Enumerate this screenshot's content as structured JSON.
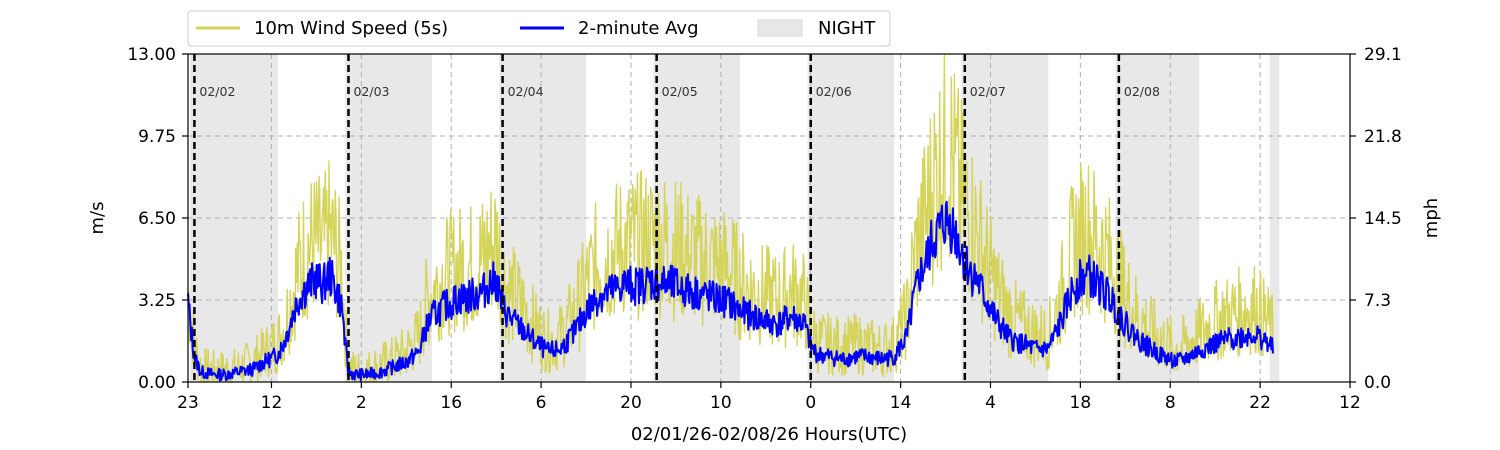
{
  "chart_data": {
    "type": "line",
    "xlabel": "02/01/26-02/08/26  Hours(UTC)",
    "ylabel_left": "m/s",
    "ylabel_right": "mph",
    "ylim": [
      0,
      13
    ],
    "x_start_hour": 23,
    "x_range_hours": [
      0,
      181
    ],
    "yticks_left": [
      "0.00",
      "3.25",
      "6.50",
      "9.75",
      "13.00"
    ],
    "yticks_left_values": [
      0,
      3.25,
      6.5,
      9.75,
      13
    ],
    "yticks_right": [
      "0.0",
      "7.3",
      "14.5",
      "21.8",
      "29.1"
    ],
    "xticks": [
      {
        "hours": 0,
        "label": "23"
      },
      {
        "hours": 13,
        "label": "12"
      },
      {
        "hours": 27,
        "label": "2"
      },
      {
        "hours": 41,
        "label": "16"
      },
      {
        "hours": 55,
        "label": "6"
      },
      {
        "hours": 69,
        "label": "20"
      },
      {
        "hours": 83,
        "label": "10"
      },
      {
        "hours": 97,
        "label": "0"
      },
      {
        "hours": 111,
        "label": "14"
      },
      {
        "hours": 125,
        "label": "4"
      },
      {
        "hours": 139,
        "label": "18"
      },
      {
        "hours": 153,
        "label": "8"
      },
      {
        "hours": 167,
        "label": "22"
      },
      {
        "hours": 181,
        "label": "12"
      }
    ],
    "day_markers": [
      {
        "hours": 1,
        "label": "02/02"
      },
      {
        "hours": 25,
        "label": "02/03"
      },
      {
        "hours": 49,
        "label": "02/04"
      },
      {
        "hours": 73,
        "label": "02/05"
      },
      {
        "hours": 97,
        "label": "02/06"
      },
      {
        "hours": 121,
        "label": "02/07"
      },
      {
        "hours": 145,
        "label": "02/08"
      }
    ],
    "night_periods": [
      [
        0.3,
        14
      ],
      [
        24.5,
        38
      ],
      [
        48.5,
        62
      ],
      [
        72.5,
        86
      ],
      [
        96.5,
        110
      ],
      [
        120.5,
        134
      ],
      [
        144.5,
        157.5
      ],
      [
        168.5,
        170
      ]
    ],
    "legend": {
      "placement": "top-center",
      "entries": [
        "10m Wind Speed (5s)",
        "2-minute Avg",
        "NIGHT"
      ]
    },
    "colors": {
      "gust": "#d4d45a",
      "avg": "#0000ff",
      "night": "#e8e8e8"
    },
    "grid": true,
    "series": [
      {
        "name": "10m Wind Speed (5s)",
        "x": [
          0,
          0.5,
          1,
          2,
          4,
          6,
          8,
          10,
          12,
          14,
          15,
          16,
          17,
          18,
          19,
          20,
          21,
          22,
          23,
          24,
          24.5,
          25,
          26,
          28,
          30,
          32,
          34,
          36,
          37,
          38,
          40,
          42,
          44,
          46,
          47,
          48,
          49,
          50,
          52,
          54,
          56,
          58,
          60,
          62,
          64,
          66,
          68,
          70,
          72,
          74,
          76,
          78,
          80,
          82,
          84,
          86,
          88,
          90,
          92,
          94,
          96,
          97,
          98,
          100,
          102,
          104,
          106,
          108,
          110,
          112,
          113,
          114,
          115,
          116,
          117,
          118,
          119,
          120,
          121,
          122,
          123,
          124,
          126,
          128,
          130,
          132,
          134,
          136,
          138,
          140,
          142,
          144,
          146,
          148,
          150,
          152,
          154,
          156,
          158,
          160,
          162,
          164,
          166,
          168,
          169
        ],
        "values": [
          3.6,
          2.5,
          1.4,
          0.6,
          0.5,
          0.5,
          0.6,
          0.8,
          1.2,
          1.6,
          2.2,
          3.2,
          4.3,
          5.0,
          5.4,
          5.5,
          5.2,
          5.8,
          5.3,
          4.2,
          2.0,
          0.6,
          0.5,
          0.5,
          0.7,
          0.9,
          1.2,
          1.8,
          3.0,
          3.6,
          4.2,
          4.5,
          4.6,
          4.9,
          5.3,
          5.6,
          4.2,
          3.6,
          3.0,
          2.2,
          1.6,
          1.8,
          2.6,
          3.8,
          4.8,
          5.1,
          5.4,
          5.4,
          5.6,
          5.5,
          5.3,
          5.0,
          4.8,
          4.6,
          4.5,
          3.9,
          3.6,
          3.4,
          3.2,
          3.6,
          3.2,
          2.0,
          1.6,
          1.5,
          1.4,
          1.5,
          1.4,
          1.3,
          1.5,
          2.6,
          4.6,
          5.8,
          6.6,
          7.8,
          8.4,
          9.4,
          8.8,
          7.8,
          7.0,
          6.4,
          5.8,
          5.0,
          3.6,
          2.6,
          2.2,
          1.9,
          1.8,
          3.4,
          5.4,
          6.0,
          5.4,
          4.6,
          3.4,
          2.6,
          2.0,
          1.6,
          1.3,
          1.6,
          2.0,
          2.4,
          2.6,
          2.8,
          3.0,
          2.4,
          2.0
        ]
      },
      {
        "name": "2-minute Avg",
        "x": [
          0,
          0.5,
          1,
          2,
          4,
          6,
          8,
          10,
          12,
          14,
          15,
          16,
          17,
          18,
          19,
          20,
          21,
          22,
          23,
          24,
          24.5,
          25,
          26,
          28,
          30,
          32,
          34,
          36,
          37,
          38,
          40,
          42,
          44,
          46,
          47,
          48,
          49,
          50,
          52,
          54,
          56,
          58,
          60,
          62,
          64,
          66,
          68,
          70,
          72,
          74,
          76,
          78,
          80,
          82,
          84,
          86,
          88,
          90,
          92,
          94,
          96,
          97,
          98,
          100,
          102,
          104,
          106,
          108,
          110,
          112,
          113,
          114,
          115,
          116,
          117,
          118,
          119,
          120,
          121,
          122,
          123,
          124,
          126,
          128,
          130,
          132,
          134,
          136,
          138,
          140,
          142,
          144,
          146,
          148,
          150,
          152,
          154,
          156,
          158,
          160,
          162,
          164,
          166,
          168,
          169
        ],
        "values": [
          3.2,
          2.0,
          1.0,
          0.4,
          0.3,
          0.3,
          0.4,
          0.5,
          0.8,
          1.1,
          1.6,
          2.4,
          3.2,
          3.6,
          3.9,
          4.1,
          3.8,
          4.3,
          3.7,
          3.0,
          1.4,
          0.4,
          0.3,
          0.3,
          0.4,
          0.6,
          0.8,
          1.2,
          2.1,
          2.6,
          3.0,
          3.3,
          3.4,
          3.6,
          3.9,
          4.0,
          3.0,
          2.6,
          2.1,
          1.6,
          1.2,
          1.3,
          1.9,
          2.8,
          3.4,
          3.6,
          3.9,
          3.8,
          4.0,
          3.9,
          3.8,
          3.6,
          3.5,
          3.3,
          3.2,
          2.8,
          2.6,
          2.4,
          2.3,
          2.6,
          2.3,
          1.4,
          1.1,
          1.0,
          0.9,
          1.0,
          1.0,
          0.9,
          1.0,
          1.8,
          3.2,
          4.2,
          4.8,
          5.6,
          6.0,
          6.4,
          6.2,
          5.6,
          4.8,
          4.3,
          4.0,
          3.4,
          2.4,
          1.7,
          1.5,
          1.3,
          1.3,
          2.4,
          3.8,
          4.3,
          3.8,
          3.2,
          2.3,
          1.7,
          1.3,
          1.0,
          0.8,
          1.0,
          1.3,
          1.5,
          1.7,
          1.8,
          1.9,
          1.6,
          1.3
        ]
      }
    ]
  }
}
